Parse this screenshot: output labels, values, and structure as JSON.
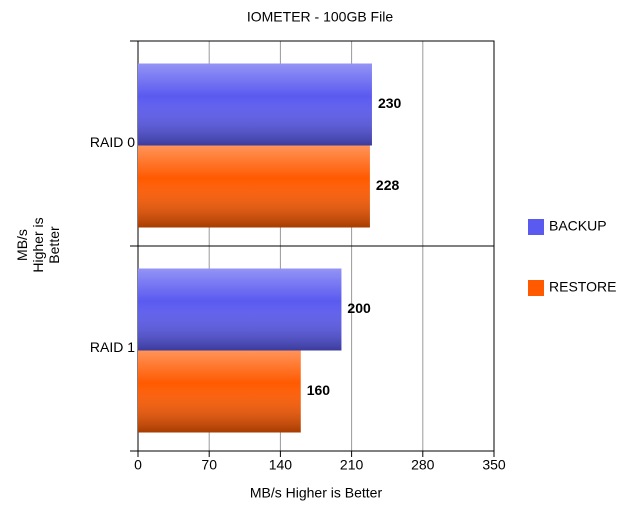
{
  "chart_data": {
    "type": "hbar",
    "title": "IOMETER - 100GB File",
    "x_label": "MB/s Higher is Better",
    "y_label": "MB/s Higher is Better",
    "categories": [
      "RAID 0",
      "RAID 1"
    ],
    "series": [
      {
        "name": "BACKUP",
        "color": "#5a5af0",
        "values": [
          230,
          200
        ]
      },
      {
        "name": "RESTORE",
        "color": "#ff5a00",
        "values": [
          228,
          160
        ]
      }
    ],
    "xlim": [
      0,
      350
    ],
    "xticks": [
      0,
      70,
      140,
      210,
      280,
      350
    ],
    "grid": true,
    "legend": "right"
  }
}
